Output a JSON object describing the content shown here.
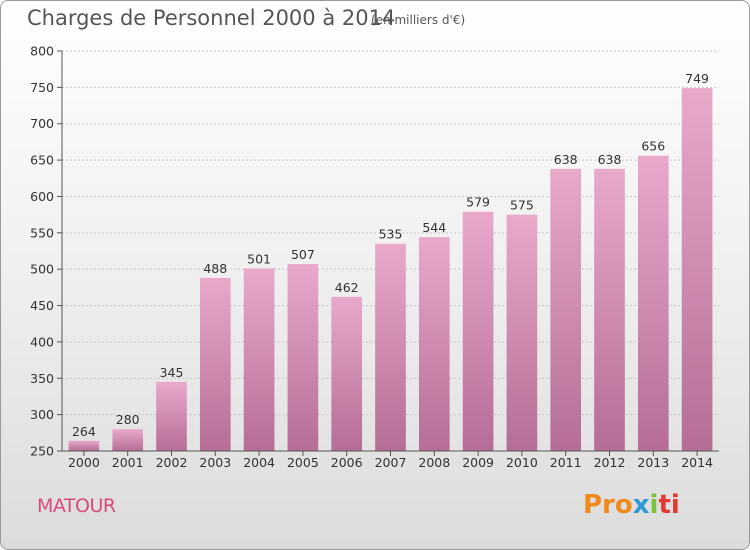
{
  "title": "Charges de Personnel 2000 à 2014",
  "subtitle": "(en milliers d'€)",
  "commune": "MATOUR",
  "logo": {
    "p1": "Pro",
    "p2": "x",
    "p3": "i",
    "p4": "ti"
  },
  "colors": {
    "bar": "#d88bb5",
    "bar_top": "#e7a6c8",
    "bar_bottom": "#b56a93",
    "commune_text": "#d94a7d"
  },
  "chart_data": {
    "type": "bar",
    "categories": [
      "2000",
      "2001",
      "2002",
      "2003",
      "2004",
      "2005",
      "2006",
      "2007",
      "2008",
      "2009",
      "2010",
      "2011",
      "2012",
      "2013",
      "2014"
    ],
    "values": [
      264,
      280,
      345,
      488,
      501,
      507,
      462,
      535,
      544,
      579,
      575,
      638,
      638,
      656,
      749
    ],
    "ylim": [
      250,
      800
    ],
    "yticks": [
      250,
      300,
      350,
      400,
      450,
      500,
      550,
      600,
      650,
      700,
      750,
      800
    ],
    "grid": true,
    "xlabel": "",
    "ylabel": ""
  }
}
